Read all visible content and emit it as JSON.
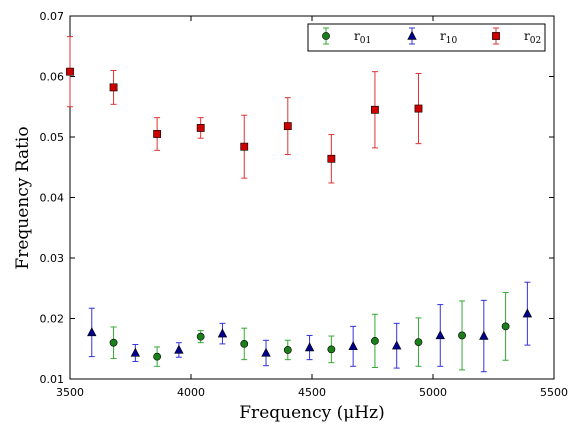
{
  "chart_data": {
    "type": "scatter",
    "title": "",
    "xlabel": "Frequency  (μHz)",
    "ylabel": "Frequency Ratio",
    "xlim": [
      3500,
      5500
    ],
    "ylim": [
      0.01,
      0.07
    ],
    "xticks": [
      3500,
      4000,
      4500,
      5000,
      5500
    ],
    "xtick_labels": [
      "3500",
      "4000",
      "4500",
      "5000",
      "5500"
    ],
    "yticks": [
      0.01,
      0.02,
      0.03,
      0.04,
      0.05,
      0.06,
      0.07
    ],
    "ytick_labels": [
      "0.01",
      "0.02",
      "0.03",
      "0.04",
      "0.05",
      "0.06",
      "0.07"
    ],
    "grid": false,
    "legend_position": "top-right",
    "series": [
      {
        "name": "r01",
        "legend_main": "r",
        "legend_sub": "01",
        "color": "#1a7f1a",
        "errcolor": "#33aa33",
        "marker": "circle",
        "points": [
          {
            "x": 3680,
            "y": 0.016,
            "err": 0.0026
          },
          {
            "x": 3860,
            "y": 0.0137,
            "err": 0.0016
          },
          {
            "x": 4040,
            "y": 0.017,
            "err": 0.001
          },
          {
            "x": 4220,
            "y": 0.0158,
            "err": 0.0026
          },
          {
            "x": 4400,
            "y": 0.0148,
            "err": 0.0016
          },
          {
            "x": 4580,
            "y": 0.0149,
            "err": 0.0022
          },
          {
            "x": 4760,
            "y": 0.0163,
            "err": 0.0044
          },
          {
            "x": 4940,
            "y": 0.0161,
            "err": 0.004
          },
          {
            "x": 5120,
            "y": 0.0172,
            "err": 0.0057
          },
          {
            "x": 5300,
            "y": 0.0187,
            "err": 0.0056
          }
        ]
      },
      {
        "name": "r10",
        "legend_main": "r",
        "legend_sub": "10",
        "color": "#00008b",
        "errcolor": "#3333dd",
        "marker": "triangle",
        "points": [
          {
            "x": 3590,
            "y": 0.0177,
            "err": 0.004
          },
          {
            "x": 3770,
            "y": 0.0143,
            "err": 0.0014
          },
          {
            "x": 3950,
            "y": 0.0148,
            "err": 0.0012
          },
          {
            "x": 4130,
            "y": 0.0175,
            "err": 0.0017
          },
          {
            "x": 4310,
            "y": 0.0143,
            "err": 0.0021
          },
          {
            "x": 4490,
            "y": 0.0152,
            "err": 0.002
          },
          {
            "x": 4670,
            "y": 0.0154,
            "err": 0.0033
          },
          {
            "x": 4850,
            "y": 0.0155,
            "err": 0.0037
          },
          {
            "x": 5030,
            "y": 0.0172,
            "err": 0.0051
          },
          {
            "x": 5210,
            "y": 0.0171,
            "err": 0.0059
          },
          {
            "x": 5390,
            "y": 0.0208,
            "err": 0.0052
          }
        ]
      },
      {
        "name": "r02",
        "legend_main": "r",
        "legend_sub": "02",
        "color": "#cc0000",
        "errcolor": "#dd3333",
        "marker": "square",
        "points": [
          {
            "x": 3500,
            "y": 0.0608,
            "err": 0.0058
          },
          {
            "x": 3680,
            "y": 0.0582,
            "err": 0.0028
          },
          {
            "x": 3860,
            "y": 0.0505,
            "err": 0.0027
          },
          {
            "x": 4040,
            "y": 0.0515,
            "err": 0.0017
          },
          {
            "x": 4220,
            "y": 0.0484,
            "err": 0.0052
          },
          {
            "x": 4400,
            "y": 0.0518,
            "err": 0.0047
          },
          {
            "x": 4580,
            "y": 0.0464,
            "err": 0.004
          },
          {
            "x": 4760,
            "y": 0.0545,
            "err": 0.0063
          },
          {
            "x": 4940,
            "y": 0.0547,
            "err": 0.0058
          }
        ]
      }
    ]
  }
}
